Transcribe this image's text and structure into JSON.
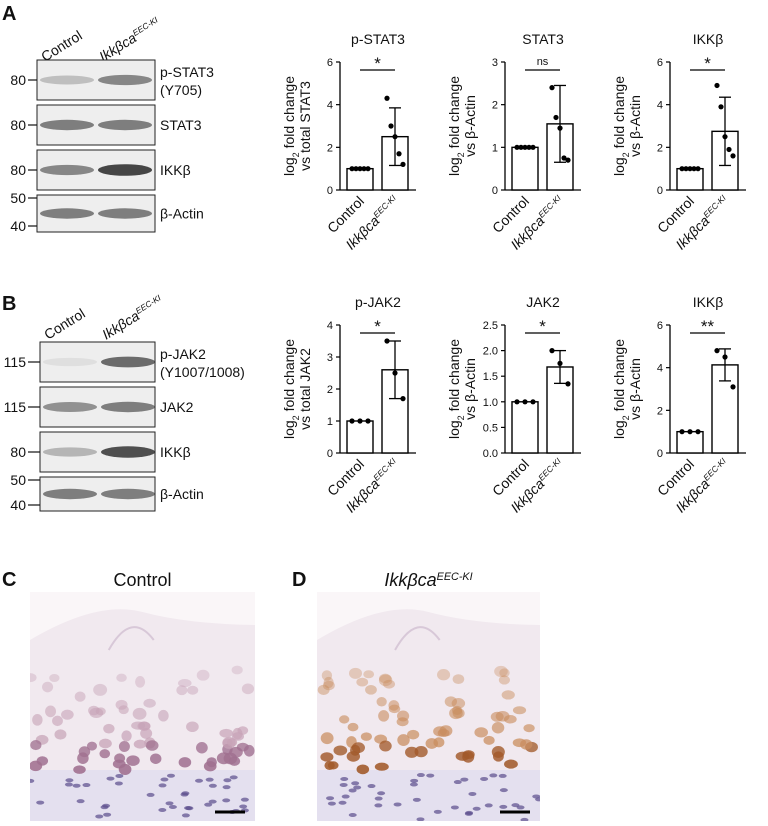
{
  "panels": [
    {
      "label": "A",
      "blot": {
        "columns": [
          "Control",
          {
            "text": "Ikkβca",
            "sup": "EEC-KI"
          }
        ],
        "rows": [
          {
            "label": [
              "p-STAT3",
              "(Y705)"
            ],
            "mw": [
              "80"
            ]
          },
          {
            "label": [
              "STAT3"
            ],
            "mw": [
              "80"
            ]
          },
          {
            "label": [
              "IKKβ"
            ],
            "mw": [
              "80"
            ]
          },
          {
            "label": [
              "β-Actin"
            ],
            "mw": [
              "50",
              "40"
            ]
          }
        ]
      }
    },
    {
      "label": "B",
      "blot": {
        "columns": [
          "Control",
          {
            "text": "Ikkβca",
            "sup": "EEC-KI"
          }
        ],
        "rows": [
          {
            "label": [
              "p-JAK2",
              "(Y1007/1008)"
            ],
            "mw": [
              "115"
            ]
          },
          {
            "label": [
              "JAK2"
            ],
            "mw": [
              "115"
            ]
          },
          {
            "label": [
              "IKKβ"
            ],
            "mw": [
              "80"
            ]
          },
          {
            "label": [
              "β-Actin"
            ],
            "mw": [
              "50",
              "40"
            ]
          }
        ]
      }
    },
    {
      "label": "C",
      "title": "Control"
    },
    {
      "label": "D",
      "title": {
        "text": "Ikkβca",
        "sup": "EEC-KI"
      }
    }
  ],
  "chart_data": [
    {
      "type": "bar",
      "title": "p-STAT3",
      "ylabel": {
        "prefix": "log",
        "sub": "2",
        "rest": " fold change",
        "line2": "vs total STAT3"
      },
      "categories": [
        "Control",
        {
          "text": "Ikkβca",
          "sup": "EEC-KI"
        }
      ],
      "values": [
        1,
        2.5
      ],
      "errors": [
        0,
        1.35
      ],
      "points": [
        [
          1,
          1,
          1,
          1,
          1
        ],
        [
          4.3,
          3.0,
          2.5,
          1.7,
          1.2
        ]
      ],
      "significance": "*",
      "ylim": [
        0,
        6
      ],
      "yticks": [
        0,
        2,
        4,
        6
      ]
    },
    {
      "type": "bar",
      "title": "STAT3",
      "ylabel": {
        "prefix": "log",
        "sub": "2",
        "rest": " fold change",
        "line2": "vs β-Actin"
      },
      "categories": [
        "Control",
        {
          "text": "Ikkβca",
          "sup": "EEC-KI"
        }
      ],
      "values": [
        1,
        1.55
      ],
      "errors": [
        0,
        0.9
      ],
      "points": [
        [
          1,
          1,
          1,
          1,
          1
        ],
        [
          2.4,
          1.7,
          1.45,
          0.75,
          0.7
        ]
      ],
      "significance": "ns",
      "ylim": [
        0,
        3
      ],
      "yticks": [
        0,
        1,
        2,
        3
      ]
    },
    {
      "type": "bar",
      "title": "IKKβ",
      "ylabel": {
        "prefix": "log",
        "sub": "2",
        "rest": " fold change",
        "line2": "vs β-Actin"
      },
      "categories": [
        "Control",
        {
          "text": "Ikkβca",
          "sup": "EEC-KI"
        }
      ],
      "values": [
        1,
        2.75
      ],
      "errors": [
        0,
        1.6
      ],
      "points": [
        [
          1,
          1,
          1,
          1,
          1
        ],
        [
          4.9,
          3.9,
          2.5,
          1.9,
          1.6
        ]
      ],
      "significance": "*",
      "ylim": [
        0,
        6
      ],
      "yticks": [
        0,
        2,
        4,
        6
      ]
    },
    {
      "type": "bar",
      "title": "p-JAK2",
      "ylabel": {
        "prefix": "log",
        "sub": "2",
        "rest": " fold change",
        "line2": "vs total JAK2"
      },
      "categories": [
        "Control",
        {
          "text": "Ikkβca",
          "sup": "EEC-KI"
        }
      ],
      "values": [
        1,
        2.6
      ],
      "errors": [
        0,
        0.9
      ],
      "points": [
        [
          1,
          1,
          1
        ],
        [
          3.5,
          2.5,
          1.7
        ]
      ],
      "significance": "*",
      "ylim": [
        0,
        4
      ],
      "yticks": [
        0,
        1,
        2,
        3,
        4
      ]
    },
    {
      "type": "bar",
      "title": "JAK2",
      "ylabel": {
        "prefix": "log",
        "sub": "2",
        "rest": " fold change",
        "line2": "vs β-Actin"
      },
      "categories": [
        "Control",
        {
          "text": "Ikkβca",
          "sup": "EEC-KI"
        }
      ],
      "values": [
        1,
        1.68
      ],
      "errors": [
        0,
        0.32
      ],
      "points": [
        [
          1,
          1,
          1
        ],
        [
          2.0,
          1.75,
          1.35
        ]
      ],
      "significance": "*",
      "ylim": [
        0,
        2.5
      ],
      "yticks": [
        {
          "value": 0,
          "label": "0.0"
        },
        {
          "value": 0.5,
          "label": "0.5"
        },
        {
          "value": 1,
          "label": "1.0"
        },
        {
          "value": 1.5,
          "label": "1.5"
        },
        {
          "value": 2,
          "label": "2.0"
        },
        {
          "value": 2.5,
          "label": "2.5"
        }
      ]
    },
    {
      "type": "bar",
      "title": "IKKβ",
      "ylabel": {
        "prefix": "log",
        "sub": "2",
        "rest": " fold change",
        "line2": "vs β-Actin"
      },
      "categories": [
        "Control",
        {
          "text": "Ikkβca",
          "sup": "EEC-KI"
        }
      ],
      "values": [
        1,
        4.13
      ],
      "errors": [
        0,
        0.75
      ],
      "points": [
        [
          1,
          1,
          1
        ],
        [
          4.8,
          4.5,
          3.1
        ]
      ],
      "significance": "**",
      "ylim": [
        0,
        6
      ],
      "yticks": [
        0,
        2,
        4,
        6
      ]
    }
  ]
}
